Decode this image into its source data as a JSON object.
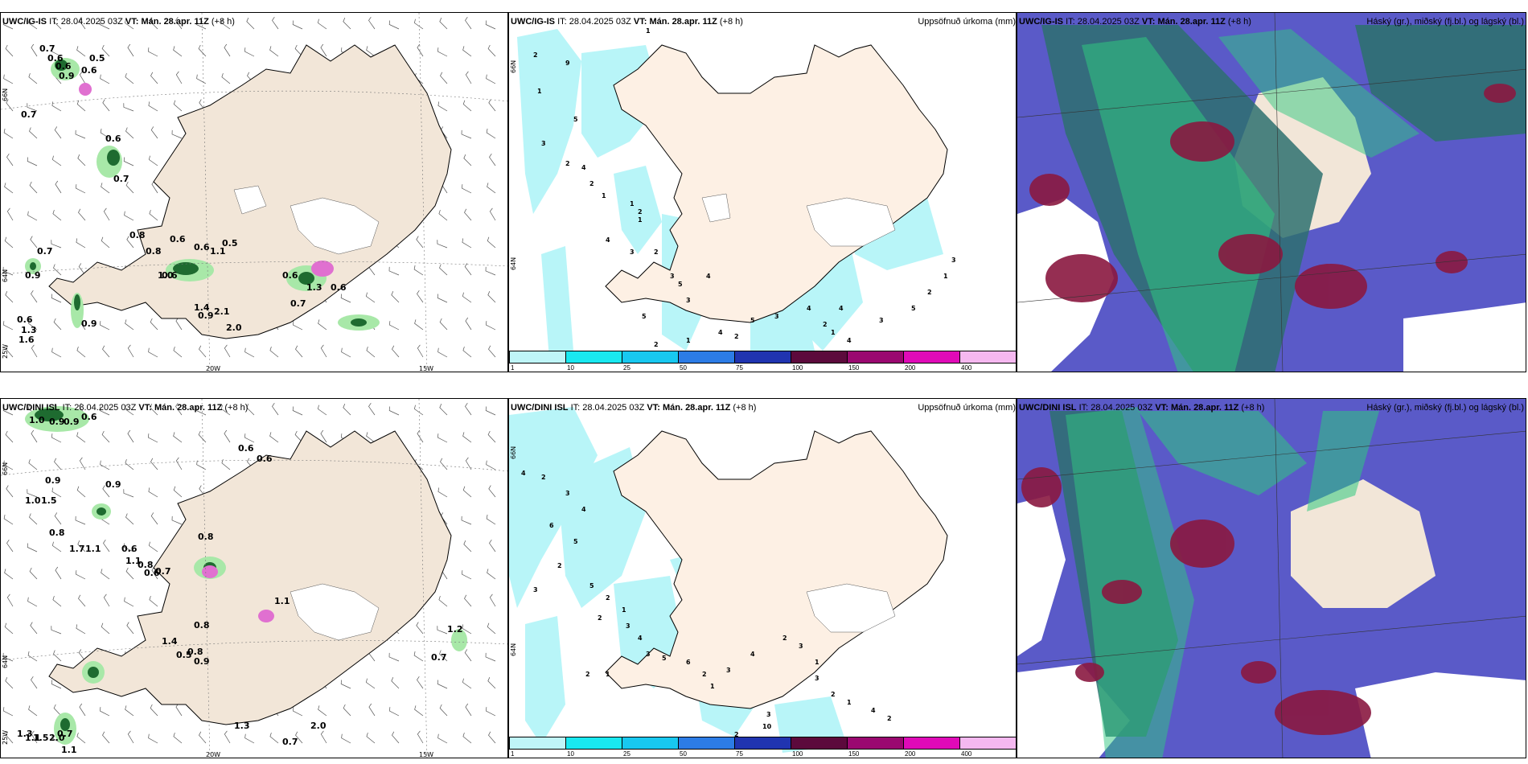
{
  "rows": [
    {
      "model": "UWC/IG-IS",
      "it_label": "IT:",
      "it_value": "28.04.2025 03Z",
      "vt_label": "VT:",
      "vt_value": "Mán. 28.apr. 11Z",
      "lead": "(+8 h)",
      "left_labels": [
        "0.7",
        "0.6",
        "0.6",
        "0.9",
        "0.6",
        "0.5",
        "0.7",
        "0.6",
        "0.7",
        "0.8",
        "0.8",
        "1.0",
        "0.6",
        "0.6",
        "1.1",
        "0.5",
        "0.6",
        "0.7",
        "0.9",
        "0.6",
        "1.3",
        "1.6",
        "0.9",
        "1.4",
        "2.1",
        "0.9",
        "2.0",
        "0.6",
        "0.7",
        "1.3",
        "0.6"
      ],
      "precip_labels": [
        "1",
        "2",
        "9",
        "1",
        "5",
        "3",
        "2",
        "4",
        "2",
        "1",
        "1",
        "2",
        "1",
        "4",
        "3",
        "2",
        "3",
        "5",
        "4",
        "3",
        "5",
        "2",
        "1",
        "4",
        "2",
        "5",
        "3",
        "4",
        "2",
        "1",
        "4",
        "3",
        "5",
        "2",
        "1",
        "3",
        "4"
      ]
    },
    {
      "model": "UWC/DINI ISL",
      "it_label": "IT:",
      "it_value": "28.04.2025 03Z",
      "vt_label": "VT:",
      "vt_value": "Mán. 28.apr. 11Z",
      "lead": "(+8 h)",
      "left_labels": [
        "1.0",
        "0.9",
        "0.9",
        "0.6",
        "0.6",
        "0.6",
        "0.9",
        "0.9",
        "1.0",
        "1.5",
        "0.8",
        "1.7",
        "1.1",
        "0.6",
        "1.1",
        "0.8",
        "0.6",
        "0.7",
        "0.8",
        "1.1",
        "0.8",
        "1.4",
        "0.5",
        "0.8",
        "0.9",
        "1.2",
        "0.7",
        "1.3",
        "1.5",
        "2.0",
        "0.7",
        "1.1",
        "1.1",
        "0.7",
        "1.3",
        "2.0"
      ],
      "precip_labels": [
        "4",
        "2",
        "3",
        "4",
        "6",
        "5",
        "2",
        "3",
        "5",
        "2",
        "1",
        "2",
        "3",
        "4",
        "3",
        "5",
        "6",
        "2",
        "1",
        "3",
        "4",
        "2",
        "3",
        "1",
        "3",
        "2",
        "1",
        "4",
        "2",
        "3",
        "10",
        "2",
        "1",
        "2",
        "1"
      ]
    }
  ],
  "center_right_title": "Uppsöfnuð úrkoma (mm)",
  "right_right_title": "Háský (gr.), miðský (fj.bl.) og lágský (bl.)",
  "axis_labels": {
    "lat66": "66N",
    "lat64": "64N",
    "lon20": "20W",
    "lon15": "15W",
    "lon25": "25W"
  },
  "colorbar": {
    "labels": [
      "1",
      "10",
      "25",
      "50",
      "75",
      "100",
      "150",
      "200",
      "400"
    ],
    "colors": [
      "#bff5f8",
      "#19e8f0",
      "#18c8f0",
      "#2c7ce6",
      "#2034b0",
      "#5c0a3c",
      "#9a0870",
      "#e00ab8",
      "#f5b8f0"
    ]
  },
  "colors": {
    "land": "#f2e6d8",
    "land_light": "#fdf0e4",
    "precip": "#b8f5f8",
    "green_dark": "#1e6b30",
    "green_light": "#a8e8a8",
    "cloud_high": "#2e7070",
    "cloud_mid": "#5a5ac8",
    "cloud_low": "#8a1840",
    "cloud_green": "#30c880"
  }
}
